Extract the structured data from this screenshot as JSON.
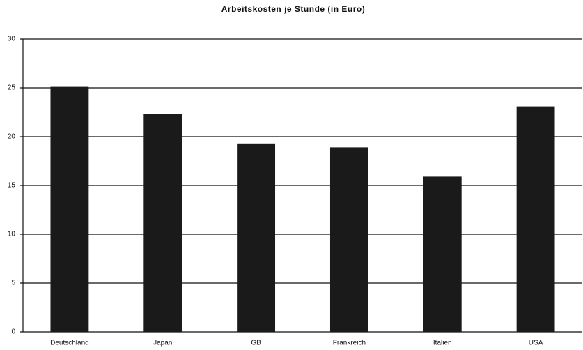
{
  "chart_data": {
    "type": "bar",
    "title": "Arbeitskosten je Stunde (in Euro)",
    "categories": [
      "Deutschland",
      "Japan",
      "GB",
      "Frankreich",
      "Italien",
      "USA"
    ],
    "values": [
      25.1,
      22.3,
      19.3,
      18.9,
      15.9,
      23.1
    ],
    "color": "#1a1a1a",
    "ylim": [
      0,
      30
    ],
    "yticks": [
      0,
      5,
      10,
      15,
      20,
      25,
      30
    ],
    "grid": true
  }
}
